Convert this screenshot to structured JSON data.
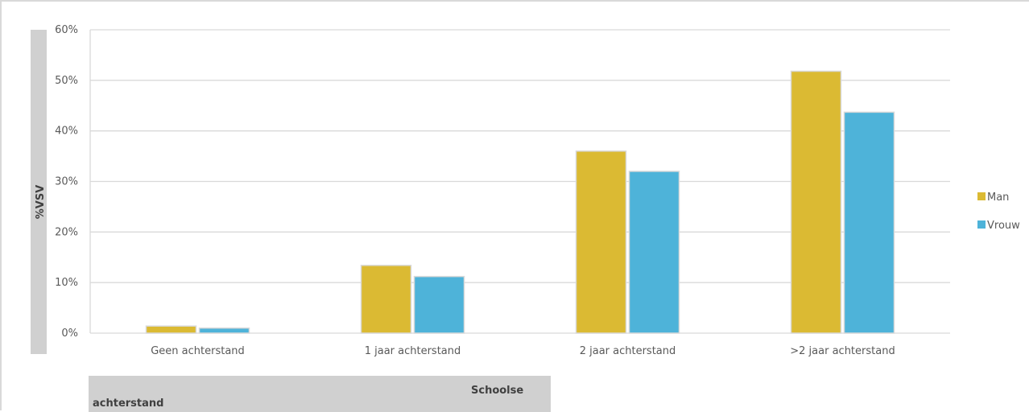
{
  "colors": {
    "man": "#DBBA33",
    "vrouw": "#4EB3D9",
    "gridline": "#D9D9D9",
    "axis_title_bg": "#D0D0D0"
  },
  "chart_data": {
    "type": "bar",
    "categories": [
      "Geen achterstand",
      "1 jaar achterstand",
      "2 jaar achterstand",
      ">2 jaar achterstand"
    ],
    "series": [
      {
        "name": "Man",
        "values": [
          1.4,
          13.4,
          36.0,
          51.8
        ]
      },
      {
        "name": "Vrouw",
        "values": [
          1.0,
          11.2,
          32.0,
          43.7
        ]
      }
    ],
    "yticks": [
      "0%",
      "10%",
      "20%",
      "30%",
      "40%",
      "50%",
      "60%"
    ],
    "ylim": [
      0,
      60
    ],
    "ylabel": "%VSV",
    "xlabel": [
      "Schoolse",
      "achterstand"
    ],
    "grid": true,
    "legend_position": "right"
  }
}
